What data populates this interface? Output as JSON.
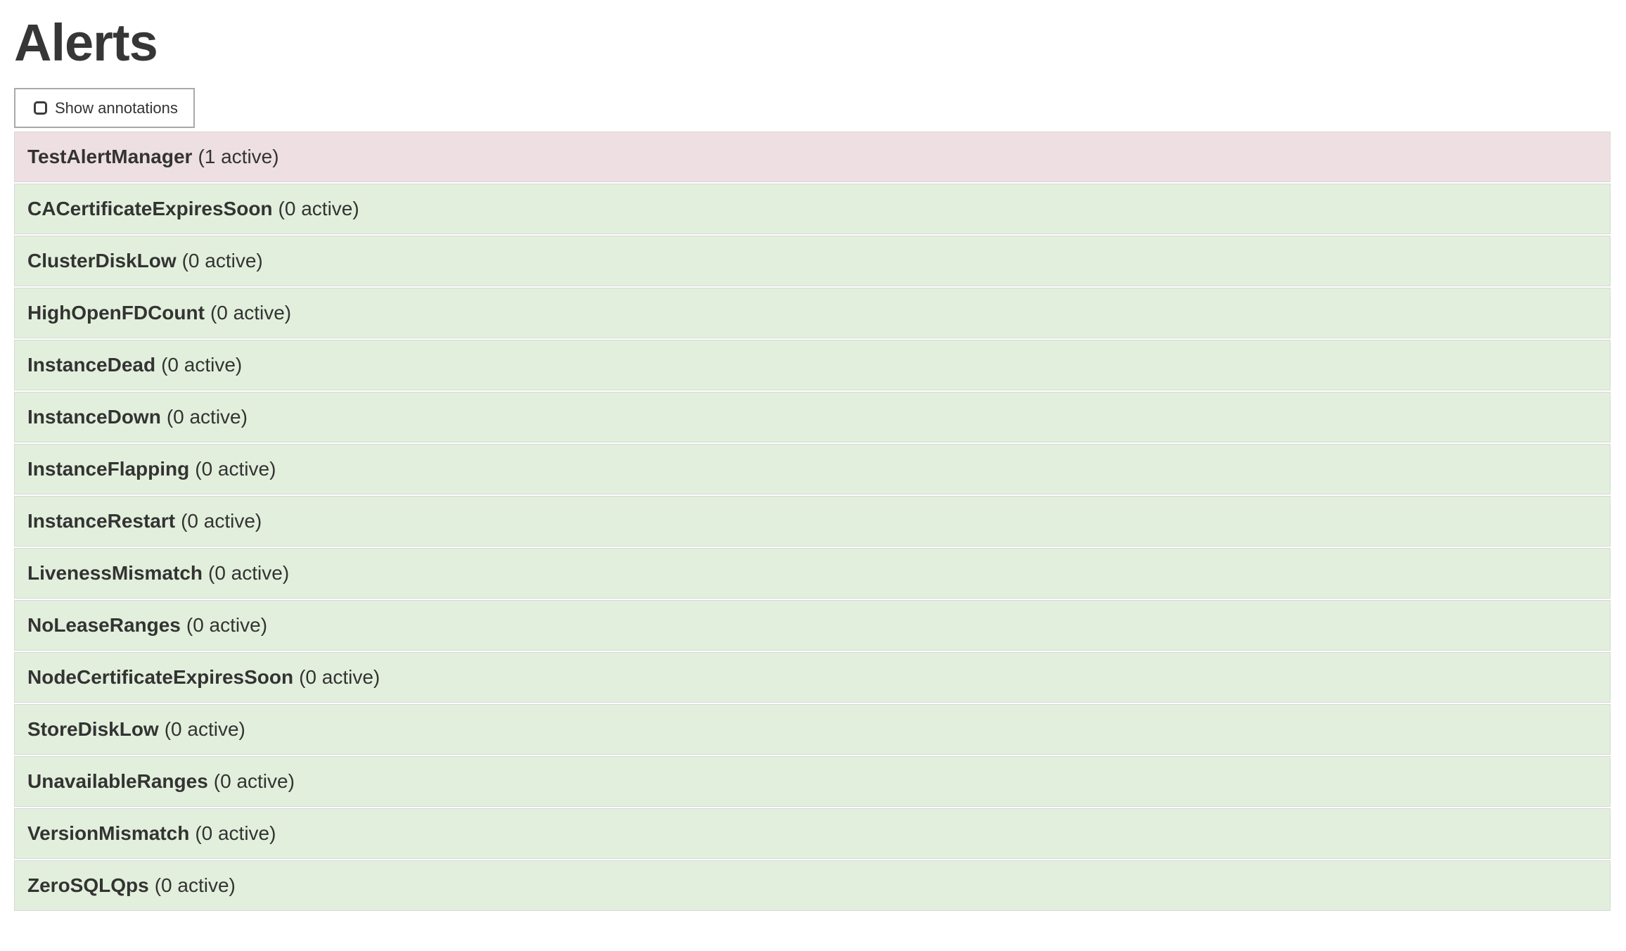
{
  "page_title": "Alerts",
  "controls": {
    "show_annotations": {
      "label": "Show annotations",
      "checked": false
    }
  },
  "alerts": [
    {
      "name": "TestAlertManager",
      "count_label": "(1 active)",
      "active": 1,
      "state": "firing"
    },
    {
      "name": "CACertificateExpiresSoon",
      "count_label": "(0 active)",
      "active": 0,
      "state": "inactive"
    },
    {
      "name": "ClusterDiskLow",
      "count_label": "(0 active)",
      "active": 0,
      "state": "inactive"
    },
    {
      "name": "HighOpenFDCount",
      "count_label": "(0 active)",
      "active": 0,
      "state": "inactive"
    },
    {
      "name": "InstanceDead",
      "count_label": "(0 active)",
      "active": 0,
      "state": "inactive"
    },
    {
      "name": "InstanceDown",
      "count_label": "(0 active)",
      "active": 0,
      "state": "inactive"
    },
    {
      "name": "InstanceFlapping",
      "count_label": "(0 active)",
      "active": 0,
      "state": "inactive"
    },
    {
      "name": "InstanceRestart",
      "count_label": "(0 active)",
      "active": 0,
      "state": "inactive"
    },
    {
      "name": "LivenessMismatch",
      "count_label": "(0 active)",
      "active": 0,
      "state": "inactive"
    },
    {
      "name": "NoLeaseRanges",
      "count_label": "(0 active)",
      "active": 0,
      "state": "inactive"
    },
    {
      "name": "NodeCertificateExpiresSoon",
      "count_label": "(0 active)",
      "active": 0,
      "state": "inactive"
    },
    {
      "name": "StoreDiskLow",
      "count_label": "(0 active)",
      "active": 0,
      "state": "inactive"
    },
    {
      "name": "UnavailableRanges",
      "count_label": "(0 active)",
      "active": 0,
      "state": "inactive"
    },
    {
      "name": "VersionMismatch",
      "count_label": "(0 active)",
      "active": 0,
      "state": "inactive"
    },
    {
      "name": "ZeroSQLQps",
      "count_label": "(0 active)",
      "active": 0,
      "state": "inactive"
    }
  ],
  "colors": {
    "firing_bg": "#eee0e2",
    "inactive_bg": "#e2efdc",
    "row_border": "#d7d7d7",
    "text": "#333333",
    "title": "#363636",
    "button_border": "#a9a9a9"
  }
}
